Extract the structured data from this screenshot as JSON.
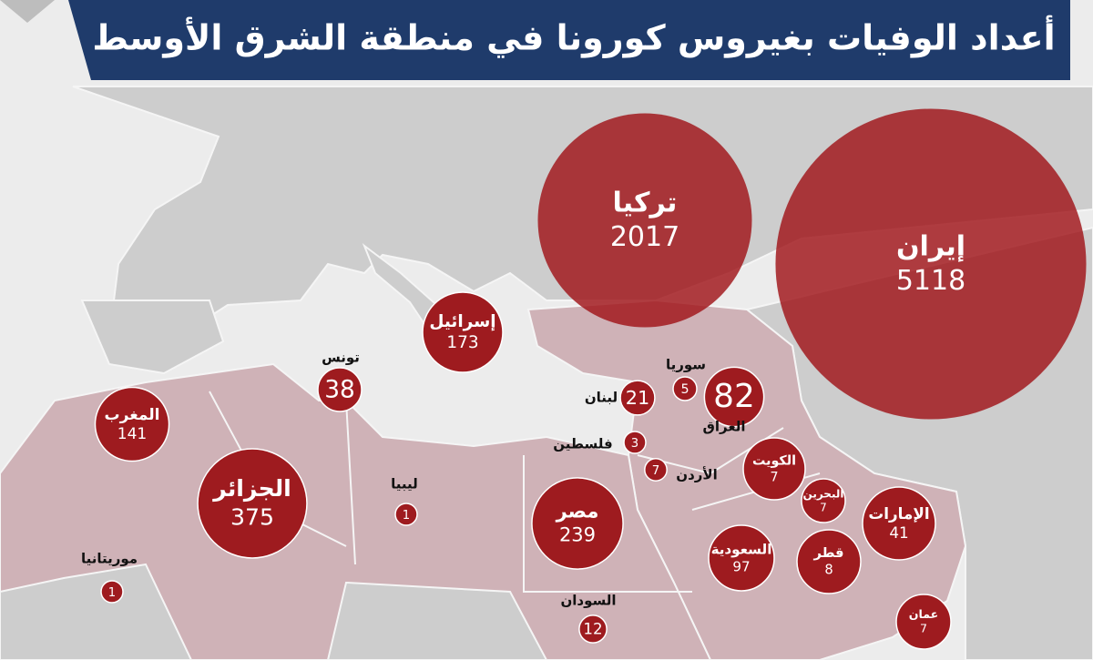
{
  "title": "أعداد الوفيات بغيروس كورونا في منطقة الشرق الأوسط",
  "countries": [
    {
      "name": "تركيا",
      "deaths": 2017
    },
    {
      "name": "إيران",
      "deaths": 5118
    },
    {
      "name": "إسرائيل",
      "deaths": 173
    },
    {
      "name": "تونس",
      "deaths": 38
    },
    {
      "name": "المغرب",
      "deaths": 141
    },
    {
      "name": "الجزائر",
      "deaths": 375
    },
    {
      "name": "ليبيا",
      "deaths": 1
    },
    {
      "name": "موريتانيا",
      "deaths": 1
    },
    {
      "name": "مصر",
      "deaths": 239
    },
    {
      "name": "السودان",
      "deaths": 12
    },
    {
      "name": "لبنان",
      "deaths": 21
    },
    {
      "name": "سوريا",
      "deaths": 5
    },
    {
      "name": "العراق",
      "deaths": 82
    },
    {
      "name": "فلسطين",
      "deaths": 3
    },
    {
      "name": "الأردن",
      "deaths": 7
    },
    {
      "name": "الكويت",
      "deaths": 7
    },
    {
      "name": "البحرين",
      "deaths": 7
    },
    {
      "name": "الإمارات",
      "deaths": 41
    },
    {
      "name": "السعودية",
      "deaths": 97
    },
    {
      "name": "قطر",
      "deaths": 8
    },
    {
      "name": "عمان",
      "deaths": 7
    }
  ]
}
